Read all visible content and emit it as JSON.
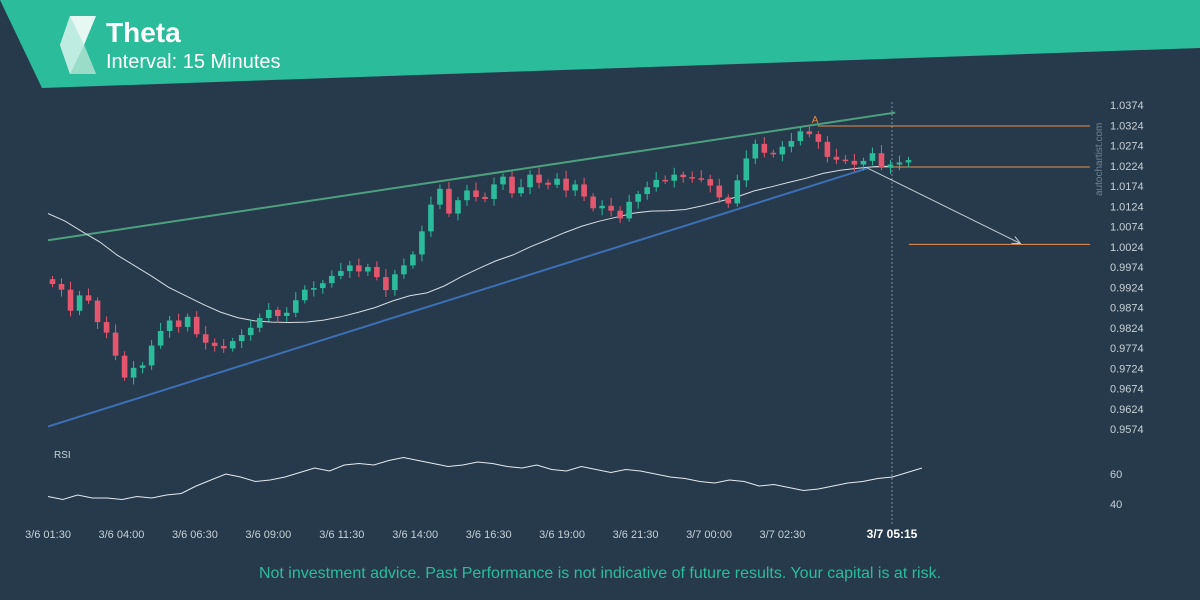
{
  "header": {
    "title": "Theta",
    "subtitle": "Interval: 15 Minutes",
    "colors": {
      "banner": "#2bbc9c",
      "text": "#ffffff"
    }
  },
  "brand": "autochartist.com",
  "disclaimer": "Not investment advice. Past Performance is not indicative of future results. Your capital is at risk.",
  "chart_data": {
    "type": "candlestick",
    "title": "Theta",
    "interval": "15 Minutes",
    "y_axis": {
      "ticks": [
        "1.0374",
        "1.0324",
        "1.0274",
        "1.0224",
        "1.0174",
        "1.0124",
        "1.0074",
        "1.0024",
        "0.9974",
        "0.9924",
        "0.9874",
        "0.9824",
        "0.9774",
        "0.9724",
        "0.9674",
        "0.9624",
        "0.9574"
      ],
      "range": [
        0.9574,
        1.0374
      ]
    },
    "x_axis": {
      "ticks": [
        "3/6 01:30",
        "3/6 04:00",
        "3/6 06:30",
        "3/6 09:00",
        "3/6 11:30",
        "3/6 14:00",
        "3/6 16:30",
        "3/6 19:00",
        "3/6 21:30",
        "3/7 00:00",
        "3/7 02:30"
      ],
      "highlight": "3/7 05:15",
      "range_hours": [
        0,
        29.75
      ],
      "origin": "3/6 01:30"
    },
    "closes": [
      0.9932,
      0.9918,
      0.9866,
      0.9904,
      0.9891,
      0.9838,
      0.9812,
      0.9755,
      0.9701,
      0.9725,
      0.9731,
      0.978,
      0.9816,
      0.9842,
      0.9826,
      0.9851,
      0.9808,
      0.9787,
      0.9779,
      0.9773,
      0.9791,
      0.9806,
      0.9824,
      0.9848,
      0.9868,
      0.9853,
      0.9861,
      0.9892,
      0.9918,
      0.9922,
      0.9934,
      0.9952,
      0.9964,
      0.9978,
      0.9963,
      0.9974,
      0.9949,
      0.9917,
      0.9956,
      0.9978,
      1.0005,
      1.0062,
      1.0128,
      1.0167,
      1.0106,
      1.0139,
      1.0163,
      1.0147,
      1.0142,
      1.0178,
      1.0197,
      1.0156,
      1.0171,
      1.0202,
      1.0182,
      1.0177,
      1.0192,
      1.0163,
      1.0178,
      1.0148,
      1.0119,
      1.0125,
      1.0113,
      1.0094,
      1.0135,
      1.0154,
      1.0171,
      1.0189,
      1.0187,
      1.0202,
      1.0196,
      1.0193,
      1.0191,
      1.0175,
      1.0146,
      1.0131,
      1.0188,
      1.0242,
      1.0278,
      1.0256,
      1.0252,
      1.0271,
      1.0285,
      1.0309,
      1.0302,
      1.0283,
      1.0246,
      1.0239,
      1.0236,
      1.0227,
      1.0236,
      1.0255,
      1.0221,
      1.0227,
      1.0232,
      1.0238
    ],
    "opens_first": 0.9944,
    "moving_average": [
      1.0106,
      1.0087,
      1.0061,
      1.0036,
      1.0004,
      0.9978,
      0.9952,
      0.9924,
      0.9903,
      0.9882,
      0.9863,
      0.9849,
      0.9841,
      0.9838,
      0.9837,
      0.9838,
      0.9843,
      0.9851,
      0.9862,
      0.9874,
      0.989,
      0.9903,
      0.991,
      0.9927,
      0.995,
      0.997,
      0.9989,
      1.0004,
      1.0024,
      1.0041,
      1.0059,
      1.0075,
      1.0087,
      1.0097,
      1.0107,
      1.0112,
      1.0113,
      1.0116,
      1.0125,
      1.0136,
      1.0147,
      1.0162,
      1.0172,
      1.0183,
      1.0193,
      1.0205,
      1.0213,
      1.0218,
      1.0222,
      1.0223
    ],
    "support_line": [
      {
        "x": 0,
        "y": 0.958
      },
      {
        "x": 27.9,
        "y": 1.0218
      }
    ],
    "resistance_line": [
      {
        "x": 0,
        "y": 1.004
      },
      {
        "x": 28.0,
        "y": 1.0346
      }
    ],
    "levels": [
      {
        "label": "A",
        "value": 1.0322,
        "x_from": 26.2,
        "x_to": 36.0
      },
      {
        "value": 1.0221,
        "x_from": 28.0,
        "x_to": 36.0
      },
      {
        "value": 1.003,
        "x_from": 29.3,
        "x_to": 36.0
      }
    ],
    "forecast_arrow": [
      {
        "x": 27.9,
        "y": 1.0218
      },
      {
        "x": 33.1,
        "y": 1.0032
      }
    ],
    "colors": {
      "background": "#263a4b",
      "up": "#2bbc9c",
      "down": "#e4566d",
      "support": "#3d6fb4",
      "resistance": "#4da07f",
      "level": "#e88e4a",
      "ma": "#d7dde2",
      "axis_text": "#c7d0d6",
      "grid": "#3a5164"
    },
    "rsi": {
      "label": "RSI",
      "ticks": [
        "60",
        "40"
      ],
      "values": [
        45,
        43,
        46,
        44,
        44,
        43,
        45,
        44,
        46,
        47,
        52,
        56,
        60,
        58,
        55,
        56,
        58,
        61,
        64,
        62,
        66,
        67,
        66,
        69,
        71,
        69,
        67,
        65,
        66,
        68,
        67,
        65,
        64,
        66,
        63,
        62,
        65,
        63,
        61,
        63,
        62,
        60,
        58,
        57,
        55,
        54,
        56,
        55,
        52,
        53,
        51,
        49,
        50,
        52,
        54,
        55,
        57,
        58,
        61,
        64
      ]
    },
    "grid": false,
    "legend": "none"
  }
}
